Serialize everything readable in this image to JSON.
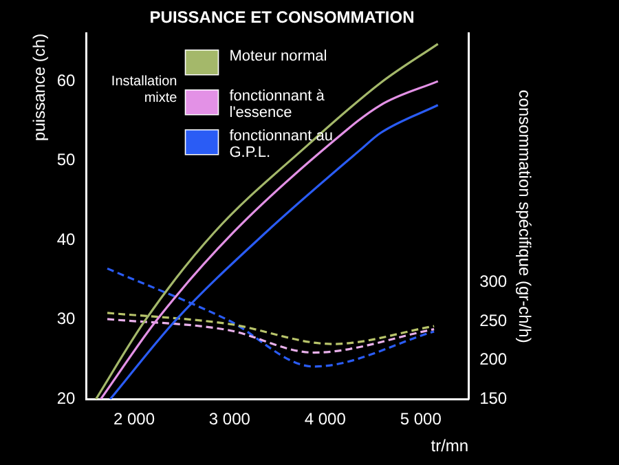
{
  "chart_data": {
    "type": "line",
    "title": "PUISSANCE ET CONSOMMATION",
    "xlabel": "tr/mn",
    "ylabel": "puissance (ch)",
    "y2label": "consommation spécifique (gr-ch/h)",
    "xlim": [
      1500,
      5500
    ],
    "xticks": [
      {
        "value": 2000,
        "label": "2 000"
      },
      {
        "value": 3000,
        "label": "3 000"
      },
      {
        "value": 4000,
        "label": "4 000"
      },
      {
        "value": 5000,
        "label": "5 000"
      }
    ],
    "ylim": [
      20,
      66
    ],
    "yticks": [
      20,
      30,
      40,
      50,
      60
    ],
    "y2lim": [
      150,
      620
    ],
    "y2ticks": [
      150,
      200,
      250,
      300
    ],
    "grid": false,
    "legend": "top left",
    "marker": "none",
    "annotations": [
      "Installation mixte"
    ],
    "series": [
      {
        "name": "Moteur normal",
        "color": "#a4b86a",
        "x": [
          1600,
          2120,
          2840,
          3820,
          4580,
          5180
        ],
        "values": [
          20,
          30,
          41,
          52,
          59.8,
          64.7
        ]
      },
      {
        "name": "fonctionnant à l'essence",
        "color": "#e391e6",
        "x": [
          1650,
          2240,
          3040,
          4040,
          4580,
          5180
        ],
        "values": [
          20,
          30,
          41,
          52,
          57,
          60
        ]
      },
      {
        "name": "fonctionnant au G.P.L.",
        "color": "#2a5cf5",
        "x": [
          1750,
          2440,
          3380,
          4380,
          4580,
          5180
        ],
        "values": [
          20,
          30,
          41,
          51.5,
          53.5,
          57
        ]
      },
      {
        "color": "#b8c46a",
        "axis": "y2",
        "line_style": "dashed",
        "x": [
          1720,
          2980,
          4080,
          5140
        ],
        "values": [
          261,
          247,
          221,
          244
        ]
      },
      {
        "color": "#e8b0ea",
        "axis": "y2",
        "line_style": "dashed",
        "x": [
          1720,
          2980,
          3880,
          5140
        ],
        "values": [
          253,
          239,
          210,
          240
        ]
      },
      {
        "color": "#2a5cf5",
        "axis": "y2",
        "line_style": "dashed",
        "x": [
          1720,
          2980,
          3880,
          5140
        ],
        "values": [
          318,
          252,
          192,
          237
        ]
      }
    ]
  }
}
